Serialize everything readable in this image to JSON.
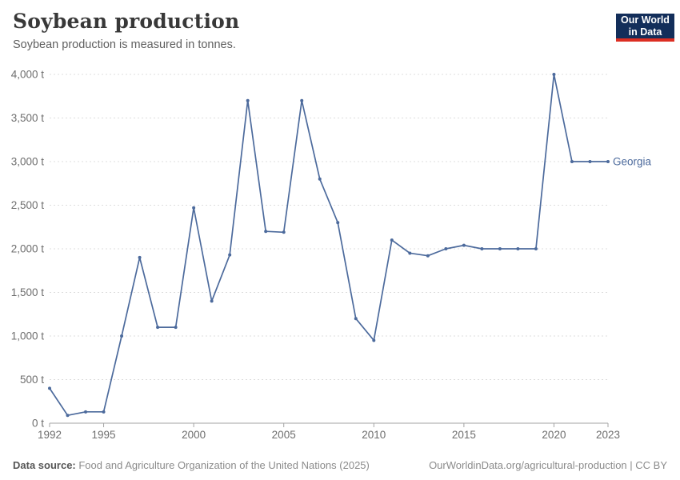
{
  "header": {
    "title": "Soybean production",
    "subtitle": "Soybean production is measured in tonnes."
  },
  "logo": {
    "line1": "Our World",
    "line2": "in Data",
    "bg_color": "#132e5a",
    "accent_color": "#dc2e22"
  },
  "footer": {
    "source_label": "Data source:",
    "source_text": " Food and Agriculture Organization of the United Nations (2025)",
    "link_text": "OurWorldinData.org/agricultural-production | CC BY"
  },
  "chart_data": {
    "type": "line",
    "title": "Soybean production",
    "subtitle": "Soybean production is measured in tonnes.",
    "unit": "tonnes",
    "grid": "horizontal-dashed",
    "legend_position": "end-of-line-label",
    "x_range": [
      1992,
      2023
    ],
    "ylim": [
      0,
      4000
    ],
    "x": [
      1992,
      1993,
      1994,
      1995,
      1996,
      1997,
      1998,
      1999,
      2000,
      2001,
      2002,
      2003,
      2004,
      2005,
      2006,
      2007,
      2008,
      2009,
      2010,
      2011,
      2012,
      2013,
      2014,
      2015,
      2016,
      2017,
      2018,
      2019,
      2020,
      2021,
      2022,
      2023
    ],
    "series": [
      {
        "name": "Georgia",
        "color": "#4c6a9c",
        "values": [
          400,
          90,
          130,
          130,
          1000,
          1900,
          1100,
          1100,
          2470,
          1400,
          1930,
          3700,
          2200,
          2190,
          3700,
          2800,
          2300,
          1200,
          950,
          2100,
          1950,
          1920,
          2000,
          2040,
          2000,
          2000,
          2000,
          2000,
          4000,
          3000,
          3000,
          3000
        ]
      }
    ],
    "y_ticks": [
      {
        "value": 0,
        "label": "0 t"
      },
      {
        "value": 500,
        "label": "500 t"
      },
      {
        "value": 1000,
        "label": "1,000 t"
      },
      {
        "value": 1500,
        "label": "1,500 t"
      },
      {
        "value": 2000,
        "label": "2,000 t"
      },
      {
        "value": 2500,
        "label": "2,500 t"
      },
      {
        "value": 3000,
        "label": "3,000 t"
      },
      {
        "value": 3500,
        "label": "3,500 t"
      },
      {
        "value": 4000,
        "label": "4,000 t"
      }
    ],
    "x_ticks": [
      {
        "value": 1992,
        "label": "1992"
      },
      {
        "value": 1995,
        "label": "1995"
      },
      {
        "value": 2000,
        "label": "2000"
      },
      {
        "value": 2005,
        "label": "2005"
      },
      {
        "value": 2010,
        "label": "2010"
      },
      {
        "value": 2015,
        "label": "2015"
      },
      {
        "value": 2020,
        "label": "2020"
      },
      {
        "value": 2023,
        "label": "2023"
      }
    ]
  }
}
